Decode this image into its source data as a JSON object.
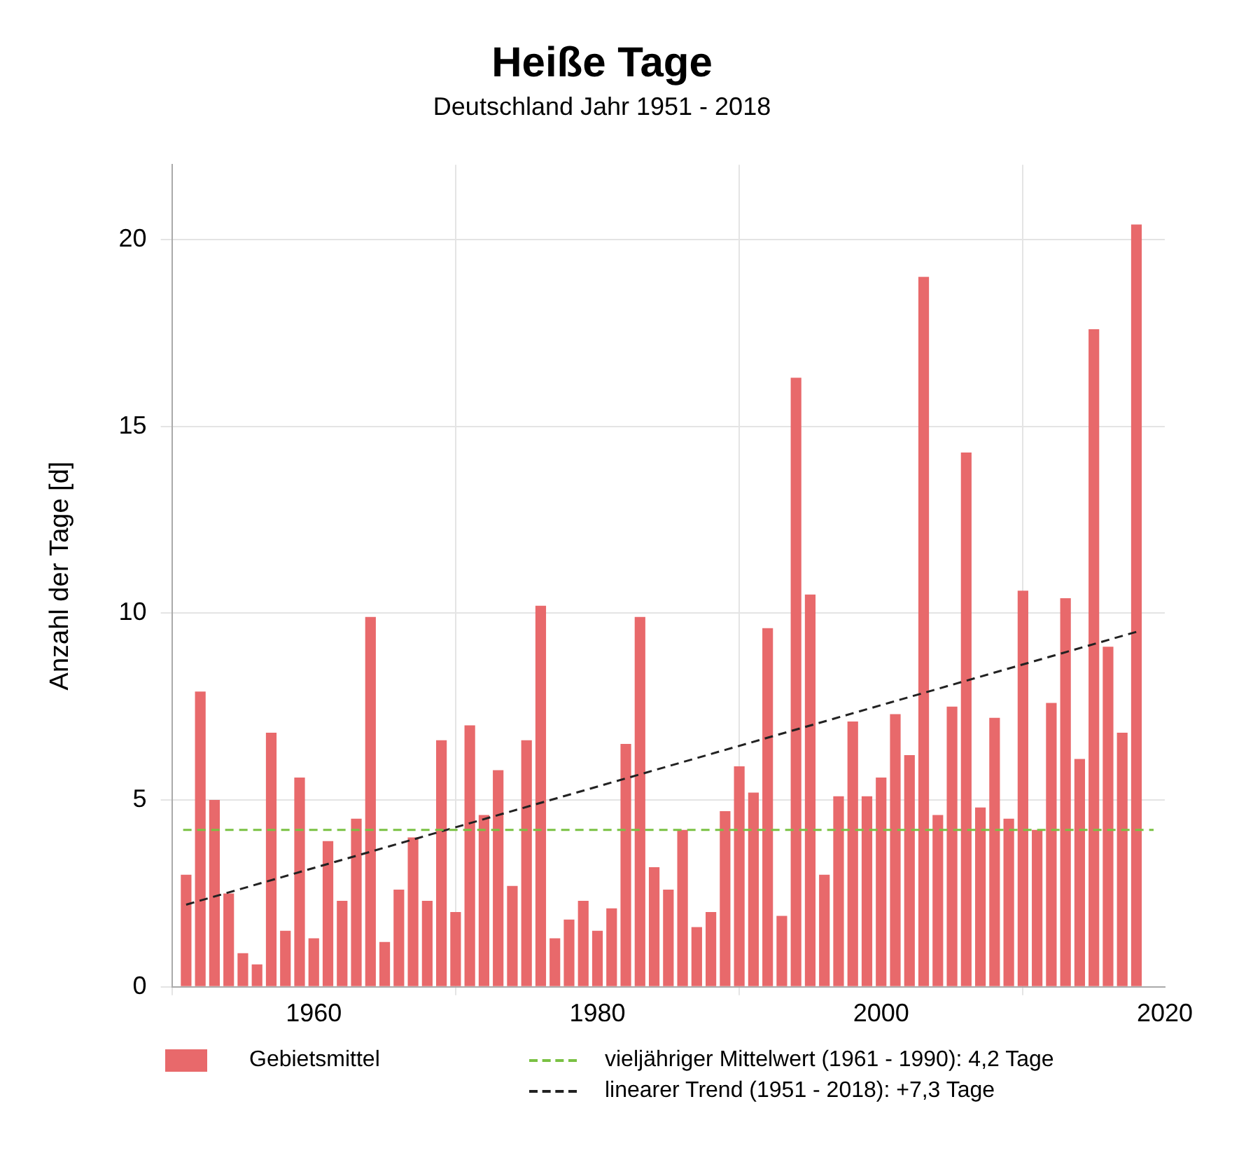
{
  "chart_data": {
    "type": "bar",
    "title": "Heiße Tage",
    "subtitle": "Deutschland Jahr 1951 - 2018",
    "ylabel": "Anzahl der Tage [d]",
    "x": [
      1951,
      1952,
      1953,
      1954,
      1955,
      1956,
      1957,
      1958,
      1959,
      1960,
      1961,
      1962,
      1963,
      1964,
      1965,
      1966,
      1967,
      1968,
      1969,
      1970,
      1971,
      1972,
      1973,
      1974,
      1975,
      1976,
      1977,
      1978,
      1979,
      1980,
      1981,
      1982,
      1983,
      1984,
      1985,
      1986,
      1987,
      1988,
      1989,
      1990,
      1991,
      1992,
      1993,
      1994,
      1995,
      1996,
      1997,
      1998,
      1999,
      2000,
      2001,
      2002,
      2003,
      2004,
      2005,
      2006,
      2007,
      2008,
      2009,
      2010,
      2011,
      2012,
      2013,
      2014,
      2015,
      2016,
      2017,
      2018
    ],
    "series": [
      {
        "name": "Gebietsmittel",
        "color": "#e8696b",
        "values": [
          3.0,
          7.9,
          5.0,
          2.5,
          0.9,
          0.6,
          6.8,
          1.5,
          5.6,
          1.3,
          3.9,
          2.3,
          4.5,
          9.9,
          1.2,
          2.6,
          4.0,
          2.3,
          6.6,
          2.0,
          7.0,
          4.6,
          5.8,
          2.7,
          6.6,
          10.2,
          1.3,
          1.8,
          2.3,
          1.5,
          2.1,
          6.5,
          9.9,
          3.2,
          2.6,
          4.2,
          1.6,
          2.0,
          4.7,
          5.9,
          5.2,
          9.6,
          1.9,
          16.3,
          10.5,
          3.0,
          5.1,
          7.1,
          5.1,
          5.6,
          7.3,
          6.2,
          19.0,
          4.6,
          7.5,
          14.3,
          4.8,
          7.2,
          4.5,
          10.6,
          4.2,
          7.6,
          10.4,
          6.1,
          17.6,
          9.1,
          6.8,
          20.4
        ]
      },
      {
        "name": "linearer Trend (1951 - 2018): +7,3 Tage",
        "type": "line",
        "color": "#222222",
        "line_style": "dashed",
        "x": [
          1951,
          2018
        ],
        "values": [
          2.2,
          9.5
        ]
      }
    ],
    "ref_lines": [
      {
        "axis": "y",
        "value": 4.2,
        "label": "vieljähriger Mittelwert (1961 - 1990): 4,2 Tage",
        "color": "#7ac143",
        "line_style": "dashed"
      }
    ],
    "xlim": [
      1950,
      2020
    ],
    "xticks": [
      1960,
      1980,
      2000,
      2020
    ],
    "ylim": [
      0,
      22
    ],
    "yticks": [
      0,
      5,
      10,
      15,
      20
    ],
    "grid": true,
    "legend": "bottom",
    "marker": "none"
  }
}
